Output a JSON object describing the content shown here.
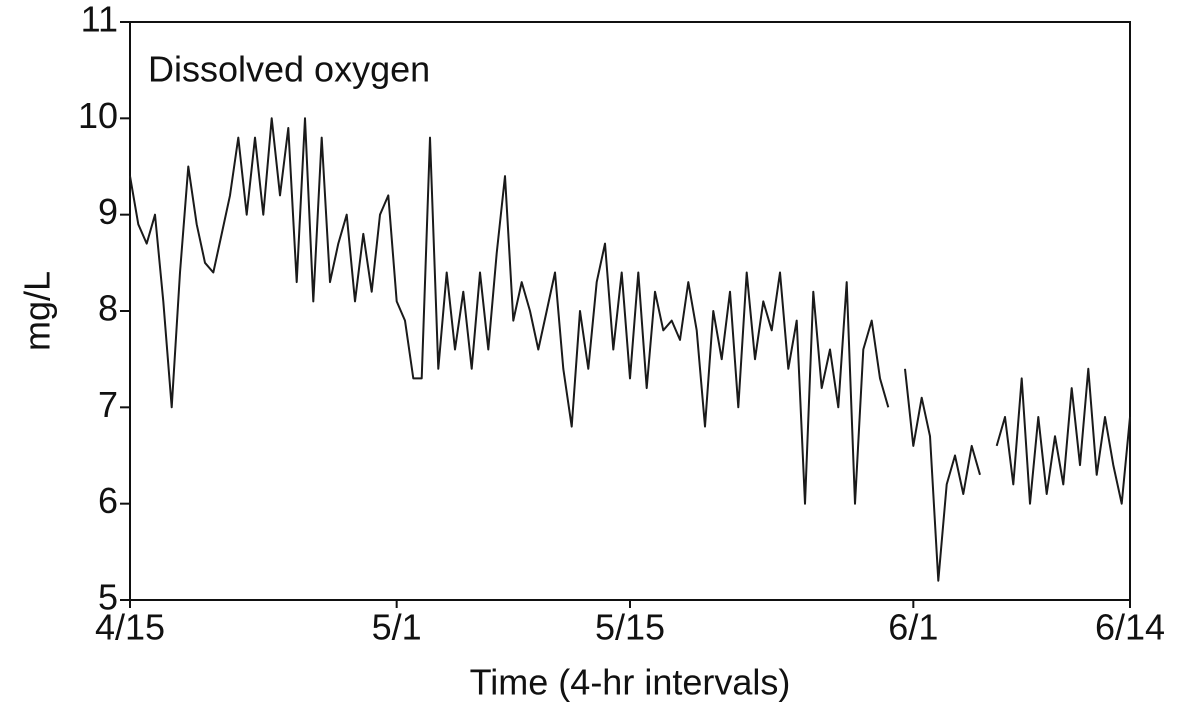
{
  "chart_data": {
    "type": "line",
    "title": "Dissolved oxygen",
    "xlabel": "Time (4-hr intervals)",
    "ylabel": "mg/L",
    "x": [
      0,
      0.5,
      1,
      1.5,
      2,
      2.5,
      3,
      3.5,
      4,
      4.5,
      5,
      5.5,
      6,
      6.5,
      7,
      7.5,
      8,
      8.5,
      9,
      9.5,
      10,
      10.5,
      11,
      11.5,
      12,
      12.5,
      13,
      13.5,
      14,
      14.5,
      15,
      15.5,
      16,
      16.5,
      17,
      17.5,
      18,
      18.5,
      19,
      19.5,
      20,
      20.5,
      21,
      21.5,
      22,
      22.5,
      23,
      23.5,
      24,
      24.5,
      25,
      25.5,
      26,
      26.5,
      27,
      27.5,
      28,
      28.5,
      29,
      29.5,
      30,
      30.5,
      31,
      31.5,
      32,
      32.5,
      33,
      33.5,
      34,
      34.5,
      35,
      35.5,
      36,
      36.5,
      37,
      37.5,
      38,
      38.5,
      39,
      39.5,
      40,
      40.5,
      41,
      41.5,
      42,
      42.5,
      43,
      43.5,
      44,
      44.5,
      45,
      45.5,
      46,
      46.5,
      47,
      47.5,
      48,
      48.5,
      49,
      49.5,
      50,
      50.5,
      51,
      51.5,
      52,
      52.5,
      53,
      53.5,
      54,
      54.5,
      55,
      55.5,
      56,
      56.5,
      57,
      57.5,
      58,
      58.5,
      59,
      59.5,
      60
    ],
    "series": [
      {
        "name": "Dissolved oxygen",
        "color": "#1a1a1a",
        "values": [
          9.4,
          8.9,
          8.7,
          9.0,
          8.1,
          7.0,
          8.4,
          9.5,
          8.9,
          8.5,
          8.4,
          8.8,
          9.2,
          9.8,
          9.0,
          9.8,
          9.0,
          10.0,
          9.2,
          9.9,
          8.3,
          10.0,
          8.1,
          9.8,
          8.3,
          8.7,
          9.0,
          8.1,
          8.8,
          8.2,
          9.0,
          9.2,
          8.1,
          7.9,
          7.3,
          7.3,
          9.8,
          7.4,
          8.4,
          7.6,
          8.2,
          7.4,
          8.4,
          7.6,
          8.6,
          9.4,
          7.9,
          8.3,
          8.0,
          7.6,
          8.0,
          8.4,
          7.4,
          6.8,
          8.0,
          7.4,
          8.3,
          8.7,
          7.6,
          8.4,
          7.3,
          8.4,
          7.2,
          8.2,
          7.8,
          7.9,
          7.7,
          8.3,
          7.8,
          6.8,
          8.0,
          7.5,
          8.2,
          7.0,
          8.4,
          7.5,
          8.1,
          7.8,
          8.4,
          7.4,
          7.9,
          6.0,
          8.2,
          7.2,
          7.6,
          7.0,
          8.3,
          6.0,
          7.6,
          7.9,
          7.3,
          7.0,
          null,
          7.4,
          6.6,
          7.1,
          6.7,
          5.2,
          6.2,
          6.5,
          6.1,
          6.6,
          6.3,
          null,
          6.6,
          6.9,
          6.2,
          7.3,
          6.0,
          6.9,
          6.1,
          6.7,
          6.2,
          7.2,
          6.4,
          7.4,
          6.3,
          6.9,
          6.4,
          6.0,
          6.9
        ]
      }
    ],
    "xlim": [
      0,
      60
    ],
    "xticks": [
      {
        "value": 0,
        "label": "4/15"
      },
      {
        "value": 16,
        "label": "5/1"
      },
      {
        "value": 30,
        "label": "5/15"
      },
      {
        "value": 47,
        "label": "6/1"
      },
      {
        "value": 60,
        "label": "6/14"
      }
    ],
    "ylim": [
      5,
      11
    ],
    "yticks": [
      5,
      6,
      7,
      8,
      9,
      10,
      11
    ],
    "grid": false
  }
}
